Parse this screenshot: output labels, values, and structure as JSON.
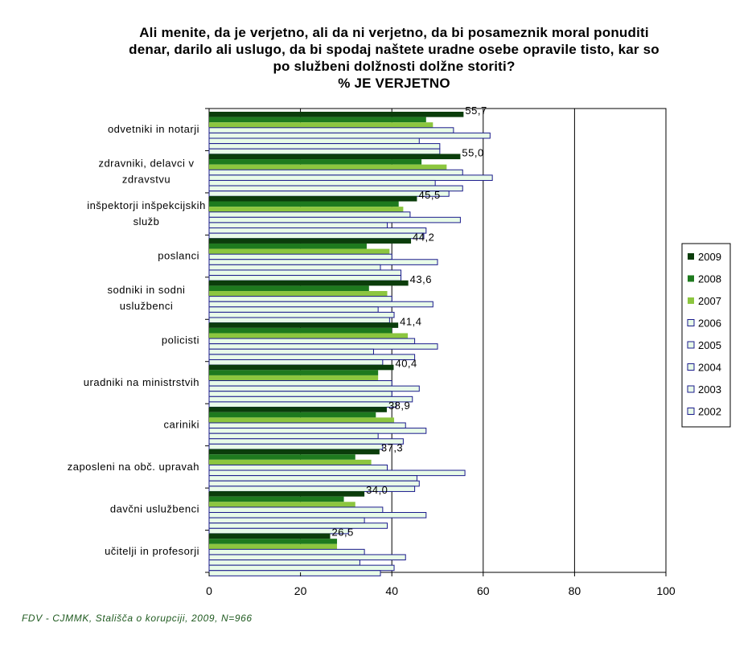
{
  "chart_data": {
    "type": "bar",
    "orientation": "horizontal",
    "title_lines": [
      "Ali menite, da je verjetno, ali da ni verjetno, da bi posameznik moral ponuditi",
      "denar, darilo ali uslugo, da bi spodaj naštete uradne osebe opravile tisto, kar so",
      "po službeni dolžnosti dolžne storiti?",
      "% JE VERJETNO"
    ],
    "source": "FDV - CJMMK, Stališča o korupciji, 2009, N=966",
    "categories": [
      [
        "odvetniki in notarji"
      ],
      [
        "zdravniki, delavci v",
        "zdravstvu"
      ],
      [
        "inšpektorji inšpekcijskih",
        "služb"
      ],
      [
        "poslanci"
      ],
      [
        "sodniki in sodni",
        "uslužbenci"
      ],
      [
        "policisti"
      ],
      [
        "uradniki na ministrstvih"
      ],
      [
        "cariniki"
      ],
      [
        "zaposleni na obč. upravah"
      ],
      [
        "davčni uslužbenci"
      ],
      [
        "učitelji in profesorji"
      ]
    ],
    "series": [
      {
        "name": "2009",
        "color": "#0b3d0b",
        "values": [
          55.7,
          55.0,
          45.5,
          44.2,
          43.6,
          41.4,
          40.4,
          38.9,
          37.3,
          34.0,
          26.5
        ]
      },
      {
        "name": "2008",
        "color": "#1e7a1e",
        "values": [
          47.5,
          46.5,
          41.5,
          34.5,
          35.0,
          40.0,
          37.0,
          36.5,
          32.0,
          29.5,
          28.0
        ]
      },
      {
        "name": "2007",
        "color": "#8cc63f",
        "values": [
          49.0,
          52.0,
          42.5,
          39.5,
          39.0,
          43.5,
          37.0,
          40.5,
          35.5,
          32.0,
          28.0
        ]
      },
      {
        "name": "2006",
        "color": "#e8fbe8",
        "values": [
          53.5,
          55.5,
          44.0,
          40.0,
          40.0,
          45.0,
          40.0,
          43.0,
          39.0,
          38.0,
          34.0
        ]
      },
      {
        "name": "2005",
        "color": "#e8fbe8",
        "values": [
          61.5,
          62.0,
          55.0,
          50.0,
          49.0,
          50.0,
          46.0,
          47.5,
          56.0,
          47.5,
          43.0
        ]
      },
      {
        "name": "2004",
        "color": "#e8fbe8",
        "values": [
          46.0,
          49.5,
          39.0,
          37.5,
          37.0,
          36.0,
          40.0,
          37.0,
          45.5,
          34.0,
          33.0
        ]
      },
      {
        "name": "2003",
        "color": "#e8fbe8",
        "values": [
          50.5,
          55.5,
          47.5,
          42.0,
          40.5,
          45.0,
          44.5,
          42.5,
          46.0,
          39.0,
          40.5
        ]
      },
      {
        "name": "2002",
        "color": "#e8fbe8",
        "values": [
          50.5,
          52.5,
          47.0,
          42.0,
          39.5,
          38.0,
          41.0,
          38.0,
          45.0,
          30.5,
          37.5
        ]
      }
    ],
    "data_labels_series": "2009",
    "data_labels": [
      "55,7",
      "55,0",
      "45,5",
      "44,2",
      "43,6",
      "41,4",
      "40,4",
      "38,9",
      "37,3",
      "34,0",
      "26,5"
    ],
    "xlim": [
      0,
      100
    ],
    "x_ticks": [
      "0",
      "20",
      "40",
      "60",
      "80",
      "100"
    ],
    "bar_stroke": "#1a1a8c",
    "gridlines": "vertical",
    "legend_position": "right"
  }
}
